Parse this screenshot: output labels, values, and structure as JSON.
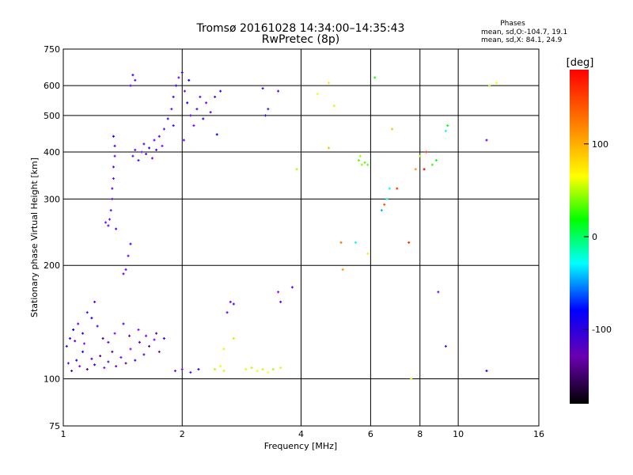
{
  "chart_data": {
    "type": "scatter",
    "title": "Tromsø 20161028 14:34:00–14:35:43",
    "subtitle": "RwPretec (8p)",
    "xlabel": "Frequency [MHz]",
    "ylabel": "Stationary phase Virtual Height [km]",
    "xscale": "log",
    "yscale": "log",
    "xlim": [
      1,
      16
    ],
    "ylim": [
      75,
      750
    ],
    "xticks": [
      1,
      2,
      4,
      6,
      8,
      10,
      16
    ],
    "yticks": [
      75,
      100,
      200,
      300,
      400,
      500,
      600,
      750
    ],
    "grid": true,
    "phase_legend": {
      "heading": "Phases",
      "line1": "mean, sd,O:-104.7, 19.1",
      "line2": "mean, sd,X:  84.1, 24.9"
    },
    "colorbar": {
      "label": "[deg]",
      "range": [
        -180,
        180
      ],
      "ticks": [
        100,
        0,
        -100
      ],
      "colormap": "rainbow"
    },
    "series": [
      {
        "points": [
          {
            "x": 1.03,
            "y": 110,
            "phase": -110
          },
          {
            "x": 1.05,
            "y": 105,
            "phase": -140
          },
          {
            "x": 1.08,
            "y": 112,
            "phase": -95
          },
          {
            "x": 1.1,
            "y": 108,
            "phase": -125
          },
          {
            "x": 1.12,
            "y": 118,
            "phase": -90
          },
          {
            "x": 1.15,
            "y": 106,
            "phase": -150
          },
          {
            "x": 1.18,
            "y": 113,
            "phase": -135
          },
          {
            "x": 1.2,
            "y": 109,
            "phase": -100
          },
          {
            "x": 1.24,
            "y": 115,
            "phase": -145
          },
          {
            "x": 1.27,
            "y": 107,
            "phase": -120
          },
          {
            "x": 1.3,
            "y": 111,
            "phase": -105
          },
          {
            "x": 1.33,
            "y": 118,
            "phase": -150
          },
          {
            "x": 1.36,
            "y": 108,
            "phase": -130
          },
          {
            "x": 1.4,
            "y": 114,
            "phase": -115
          },
          {
            "x": 1.44,
            "y": 110,
            "phase": -145
          },
          {
            "x": 1.48,
            "y": 120,
            "phase": -125
          },
          {
            "x": 1.52,
            "y": 112,
            "phase": -100
          },
          {
            "x": 1.56,
            "y": 125,
            "phase": -140
          },
          {
            "x": 1.6,
            "y": 116,
            "phase": -110
          },
          {
            "x": 1.65,
            "y": 122,
            "phase": -150
          },
          {
            "x": 1.7,
            "y": 127,
            "phase": -120
          },
          {
            "x": 1.75,
            "y": 118,
            "phase": -135
          },
          {
            "x": 1.8,
            "y": 128,
            "phase": -100
          },
          {
            "x": 1.04,
            "y": 128,
            "phase": -100
          },
          {
            "x": 1.06,
            "y": 135,
            "phase": -85
          },
          {
            "x": 1.09,
            "y": 140,
            "phase": -110
          },
          {
            "x": 1.12,
            "y": 132,
            "phase": -95
          },
          {
            "x": 1.15,
            "y": 150,
            "phase": -105
          },
          {
            "x": 1.18,
            "y": 145,
            "phase": -90
          },
          {
            "x": 1.2,
            "y": 160,
            "phase": -110
          },
          {
            "x": 1.02,
            "y": 122,
            "phase": -80
          },
          {
            "x": 1.07,
            "y": 126,
            "phase": -135
          },
          {
            "x": 1.13,
            "y": 124,
            "phase": -120
          },
          {
            "x": 1.22,
            "y": 138,
            "phase": -100
          },
          {
            "x": 1.26,
            "y": 128,
            "phase": -145
          },
          {
            "x": 1.3,
            "y": 125,
            "phase": -110
          },
          {
            "x": 1.35,
            "y": 132,
            "phase": -120
          },
          {
            "x": 1.42,
            "y": 140,
            "phase": -105
          },
          {
            "x": 1.47,
            "y": 130,
            "phase": -150
          },
          {
            "x": 1.55,
            "y": 135,
            "phase": -125
          },
          {
            "x": 1.62,
            "y": 130,
            "phase": -115
          },
          {
            "x": 1.72,
            "y": 132,
            "phase": -140
          },
          {
            "x": 1.3,
            "y": 255,
            "phase": -110
          },
          {
            "x": 1.31,
            "y": 265,
            "phase": -115
          },
          {
            "x": 1.32,
            "y": 280,
            "phase": -108
          },
          {
            "x": 1.33,
            "y": 300,
            "phase": -112
          },
          {
            "x": 1.33,
            "y": 320,
            "phase": -106
          },
          {
            "x": 1.34,
            "y": 340,
            "phase": -114
          },
          {
            "x": 1.34,
            "y": 365,
            "phase": -109
          },
          {
            "x": 1.35,
            "y": 390,
            "phase": -111
          },
          {
            "x": 1.35,
            "y": 415,
            "phase": -107
          },
          {
            "x": 1.34,
            "y": 440,
            "phase": -90
          },
          {
            "x": 1.28,
            "y": 260,
            "phase": -118
          },
          {
            "x": 1.36,
            "y": 250,
            "phase": -105
          },
          {
            "x": 1.42,
            "y": 190,
            "phase": -110
          },
          {
            "x": 1.44,
            "y": 195,
            "phase": -115
          },
          {
            "x": 1.46,
            "y": 212,
            "phase": -108
          },
          {
            "x": 1.48,
            "y": 228,
            "phase": -105
          },
          {
            "x": 1.5,
            "y": 390,
            "phase": -110
          },
          {
            "x": 1.52,
            "y": 405,
            "phase": -115
          },
          {
            "x": 1.55,
            "y": 380,
            "phase": -105
          },
          {
            "x": 1.58,
            "y": 400,
            "phase": -120
          },
          {
            "x": 1.6,
            "y": 420,
            "phase": -110
          },
          {
            "x": 1.62,
            "y": 395,
            "phase": -108
          },
          {
            "x": 1.65,
            "y": 410,
            "phase": -100
          },
          {
            "x": 1.68,
            "y": 385,
            "phase": -115
          },
          {
            "x": 1.7,
            "y": 430,
            "phase": -112
          },
          {
            "x": 1.72,
            "y": 405,
            "phase": -105
          },
          {
            "x": 1.75,
            "y": 440,
            "phase": -110
          },
          {
            "x": 1.78,
            "y": 415,
            "phase": -118
          },
          {
            "x": 1.8,
            "y": 460,
            "phase": -108
          },
          {
            "x": 1.84,
            "y": 490,
            "phase": -100
          },
          {
            "x": 1.88,
            "y": 520,
            "phase": -110
          },
          {
            "x": 1.9,
            "y": 560,
            "phase": -105
          },
          {
            "x": 1.93,
            "y": 600,
            "phase": -95
          },
          {
            "x": 1.96,
            "y": 630,
            "phase": -110
          },
          {
            "x": 2.0,
            "y": 650,
            "phase": -100
          },
          {
            "x": 2.03,
            "y": 580,
            "phase": -115
          },
          {
            "x": 2.06,
            "y": 540,
            "phase": -90
          },
          {
            "x": 2.1,
            "y": 500,
            "phase": -110
          },
          {
            "x": 2.14,
            "y": 470,
            "phase": -120
          },
          {
            "x": 2.18,
            "y": 520,
            "phase": -100
          },
          {
            "x": 2.22,
            "y": 560,
            "phase": -110
          },
          {
            "x": 2.26,
            "y": 490,
            "phase": -95
          },
          {
            "x": 2.3,
            "y": 540,
            "phase": -115
          },
          {
            "x": 2.36,
            "y": 510,
            "phase": -105
          },
          {
            "x": 2.42,
            "y": 560,
            "phase": -110
          },
          {
            "x": 2.5,
            "y": 580,
            "phase": -100
          },
          {
            "x": 1.9,
            "y": 470,
            "phase": -105
          },
          {
            "x": 2.02,
            "y": 430,
            "phase": -115
          },
          {
            "x": 2.08,
            "y": 620,
            "phase": -90
          },
          {
            "x": 2.45,
            "y": 445,
            "phase": -85
          },
          {
            "x": 1.48,
            "y": 600,
            "phase": -110
          },
          {
            "x": 1.5,
            "y": 640,
            "phase": -100
          },
          {
            "x": 1.52,
            "y": 620,
            "phase": -115
          },
          {
            "x": 1.92,
            "y": 105,
            "phase": -115
          },
          {
            "x": 2.0,
            "y": 106,
            "phase": -120
          },
          {
            "x": 2.1,
            "y": 104,
            "phase": -110
          },
          {
            "x": 2.2,
            "y": 106,
            "phase": -100
          },
          {
            "x": 2.6,
            "y": 150,
            "phase": -110
          },
          {
            "x": 2.65,
            "y": 160,
            "phase": -115
          },
          {
            "x": 2.7,
            "y": 158,
            "phase": -105
          },
          {
            "x": 3.5,
            "y": 170,
            "phase": -115
          },
          {
            "x": 3.55,
            "y": 160,
            "phase": -110
          },
          {
            "x": 3.8,
            "y": 175,
            "phase": -110
          },
          {
            "x": 3.25,
            "y": 500,
            "phase": -100
          },
          {
            "x": 3.3,
            "y": 520,
            "phase": -105
          },
          {
            "x": 3.5,
            "y": 580,
            "phase": -110
          },
          {
            "x": 3.2,
            "y": 590,
            "phase": -105
          },
          {
            "x": 8.9,
            "y": 170,
            "phase": -110
          },
          {
            "x": 9.3,
            "y": 122,
            "phase": -105
          },
          {
            "x": 11.8,
            "y": 105,
            "phase": -90
          },
          {
            "x": 11.8,
            "y": 430,
            "phase": -110
          },
          {
            "x": 2.42,
            "y": 106,
            "phase": 95
          },
          {
            "x": 2.5,
            "y": 108,
            "phase": 110
          },
          {
            "x": 2.55,
            "y": 105,
            "phase": 100
          },
          {
            "x": 2.9,
            "y": 106,
            "phase": 105
          },
          {
            "x": 3.0,
            "y": 107,
            "phase": 95
          },
          {
            "x": 3.1,
            "y": 105,
            "phase": 110
          },
          {
            "x": 3.2,
            "y": 106,
            "phase": 100
          },
          {
            "x": 3.3,
            "y": 104,
            "phase": 115
          },
          {
            "x": 3.4,
            "y": 106,
            "phase": 90
          },
          {
            "x": 3.55,
            "y": 107,
            "phase": 105
          },
          {
            "x": 2.55,
            "y": 120,
            "phase": 105
          },
          {
            "x": 2.7,
            "y": 128,
            "phase": 95
          },
          {
            "x": 4.4,
            "y": 570,
            "phase": 110
          },
          {
            "x": 4.7,
            "y": 610,
            "phase": 120
          },
          {
            "x": 4.85,
            "y": 530,
            "phase": 100
          },
          {
            "x": 4.7,
            "y": 410,
            "phase": 130
          },
          {
            "x": 5.05,
            "y": 230,
            "phase": 150
          },
          {
            "x": 5.1,
            "y": 195,
            "phase": 140
          },
          {
            "x": 5.6,
            "y": 380,
            "phase": 70
          },
          {
            "x": 5.7,
            "y": 370,
            "phase": 80
          },
          {
            "x": 5.8,
            "y": 375,
            "phase": 65
          },
          {
            "x": 5.9,
            "y": 370,
            "phase": 75
          },
          {
            "x": 5.65,
            "y": 390,
            "phase": 85
          },
          {
            "x": 5.5,
            "y": 230,
            "phase": -10
          },
          {
            "x": 5.9,
            "y": 215,
            "phase": 120
          },
          {
            "x": 6.15,
            "y": 630,
            "phase": 50
          },
          {
            "x": 6.4,
            "y": 280,
            "phase": -40
          },
          {
            "x": 6.6,
            "y": 300,
            "phase": -20
          },
          {
            "x": 6.7,
            "y": 320,
            "phase": -15
          },
          {
            "x": 6.5,
            "y": 290,
            "phase": 160
          },
          {
            "x": 7.0,
            "y": 320,
            "phase": 170
          },
          {
            "x": 7.5,
            "y": 230,
            "phase": 170
          },
          {
            "x": 7.8,
            "y": 360,
            "phase": 140
          },
          {
            "x": 8.0,
            "y": 390,
            "phase": 90
          },
          {
            "x": 8.2,
            "y": 360,
            "phase": 180
          },
          {
            "x": 8.3,
            "y": 400,
            "phase": 170
          },
          {
            "x": 8.6,
            "y": 370,
            "phase": 60
          },
          {
            "x": 8.8,
            "y": 380,
            "phase": 40
          },
          {
            "x": 9.4,
            "y": 470,
            "phase": 40
          },
          {
            "x": 9.3,
            "y": 455,
            "phase": -20
          },
          {
            "x": 12.0,
            "y": 600,
            "phase": 90
          },
          {
            "x": 12.5,
            "y": 610,
            "phase": 110
          },
          {
            "x": 3.9,
            "y": 360,
            "phase": 90
          },
          {
            "x": 7.6,
            "y": 100,
            "phase": 100
          },
          {
            "x": 6.8,
            "y": 460,
            "phase": 130
          }
        ]
      }
    ]
  }
}
